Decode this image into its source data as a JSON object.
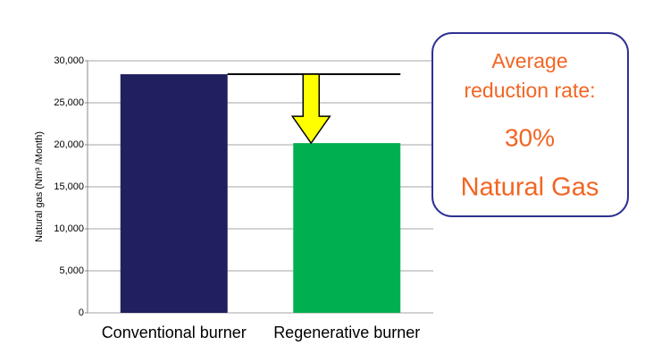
{
  "chart_data": {
    "type": "bar",
    "y_label": "Natural gas (Nm³ /Month)",
    "categories": [
      "Conventional burner",
      "Regenerative burner"
    ],
    "values": [
      28400,
      20200
    ],
    "colors": [
      "#20205f",
      "#00b050"
    ],
    "ylim": [
      0,
      30000
    ],
    "yticks": [
      0,
      {
        "value": 5000,
        "label": "5,000"
      },
      {
        "value": 10000,
        "label": "10,000"
      },
      {
        "value": 15000,
        "label": "15,000"
      },
      {
        "value": 20000,
        "label": "20,000"
      },
      {
        "value": 25000,
        "label": "25,000"
      },
      {
        "value": 30000,
        "label": "30,000"
      }
    ],
    "grid": true,
    "annotation": {
      "lines": [
        "Average",
        "reduction rate:",
        "30%",
        "Natural Gas"
      ]
    }
  }
}
